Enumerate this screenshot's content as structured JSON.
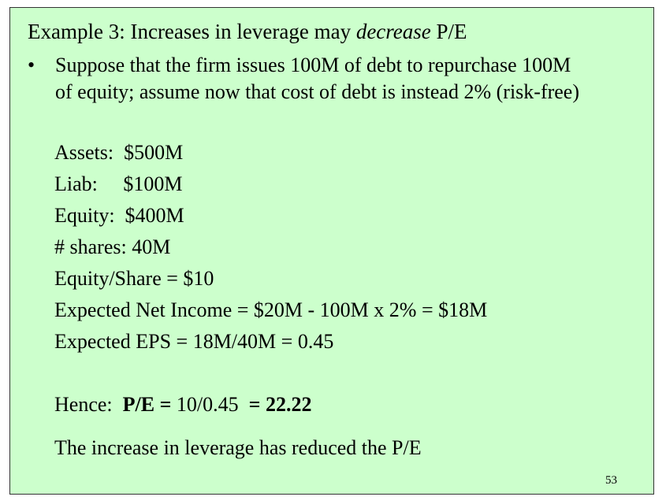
{
  "slide": {
    "title_prefix": "Example 3: Increases in leverage may ",
    "title_italic": "decrease",
    "title_suffix": " P/E",
    "bullet_symbol": "•",
    "bullet_line1": "Suppose that the firm issues 100M of debt to repurchase 100M",
    "bullet_line2": "of equity; assume now that cost of debt is instead 2% (risk-free)",
    "assets": "Assets:  $500M",
    "liab": "Liab:     $100M",
    "equity": "Equity:  $400M",
    "shares": "# shares: 40M",
    "equity_per_share": "Equity/Share = $10",
    "expected_net_income": "Expected Net Income = $20M - 100M x 2% = $18M",
    "expected_eps": "Expected EPS = 18M/40M = 0.45",
    "hence_label": "Hence:  ",
    "pe_label": "P/E = ",
    "pe_calc": "10/0.45  ",
    "pe_result": "= 22.22",
    "conclusion": "The increase in leverage has reduced the P/E",
    "page_number": "53"
  }
}
